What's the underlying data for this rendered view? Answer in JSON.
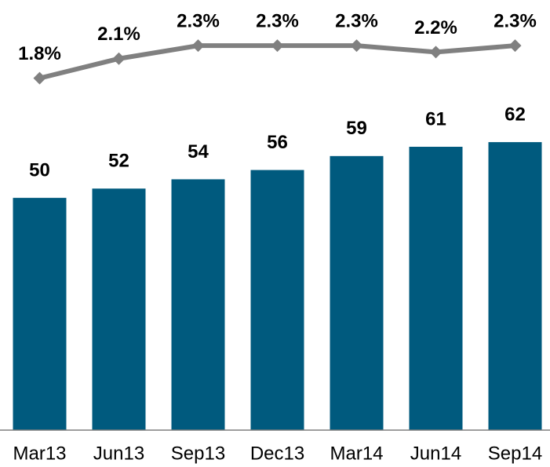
{
  "chart_data": {
    "type": "bar",
    "categories": [
      "Mar13",
      "Jun13",
      "Sep13",
      "Dec13",
      "Mar14",
      "Jun14",
      "Sep14"
    ],
    "series": [
      {
        "type": "bar",
        "color": "#005a7e",
        "values": [
          50,
          52,
          54,
          56,
          59,
          61,
          62
        ]
      },
      {
        "type": "line",
        "axis": "y2",
        "color": "#808080",
        "values": [
          1.8,
          2.1,
          2.3,
          2.3,
          2.3,
          2.2,
          2.3
        ],
        "value_labels": [
          "1.8%",
          "2.1%",
          "2.3%",
          "2.3%",
          "2.3%",
          "2.2%",
          "2.3%"
        ]
      }
    ],
    "ylim": [
      0,
      92.6
    ],
    "y2lim": [
      -3.6,
      3.0
    ]
  }
}
